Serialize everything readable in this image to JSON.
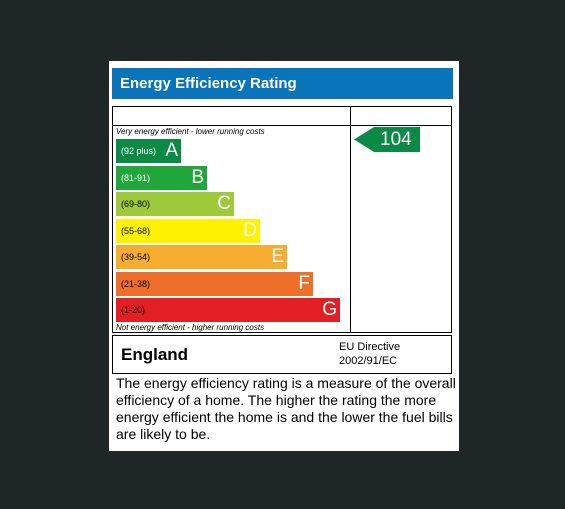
{
  "title": "Energy Efficiency Rating",
  "chart_data": {
    "type": "bar",
    "title": "Energy Efficiency Rating",
    "top_note": "Very energy efficient - lower running costs",
    "bottom_note": "Not energy efficient - higher running costs",
    "categories": [
      "A",
      "B",
      "C",
      "D",
      "E",
      "F",
      "G"
    ],
    "bands": [
      {
        "letter": "A",
        "range": "(92 plus)",
        "color": "#0a8a45",
        "range_color": "#ffffff"
      },
      {
        "letter": "B",
        "range": "(81-91)",
        "color": "#21a63b",
        "range_color": "#ffffff"
      },
      {
        "letter": "C",
        "range": "(69-80)",
        "color": "#9dc93b",
        "range_color": "#000000"
      },
      {
        "letter": "D",
        "range": "(55-68)",
        "color": "#fff200",
        "range_color": "#000000"
      },
      {
        "letter": "E",
        "range": "(39-54)",
        "color": "#f6ac2e",
        "range_color": "#000000"
      },
      {
        "letter": "F",
        "range": "(21-38)",
        "color": "#ee6f2a",
        "range_color": "#000000"
      },
      {
        "letter": "G",
        "range": "(1-20)",
        "color": "#e31e24",
        "range_color": "#000000"
      }
    ],
    "current_rating": {
      "value": 104,
      "band": "A",
      "color": "#0a8a45"
    }
  },
  "footer": {
    "country": "England",
    "directive_line1": "EU Directive",
    "directive_line2": "2002/91/EC"
  },
  "description": "The energy efficiency rating is a measure of the overall efficiency of a home. The higher the rating the more energy efficient the home is and the lower the fuel bills are likely to be."
}
